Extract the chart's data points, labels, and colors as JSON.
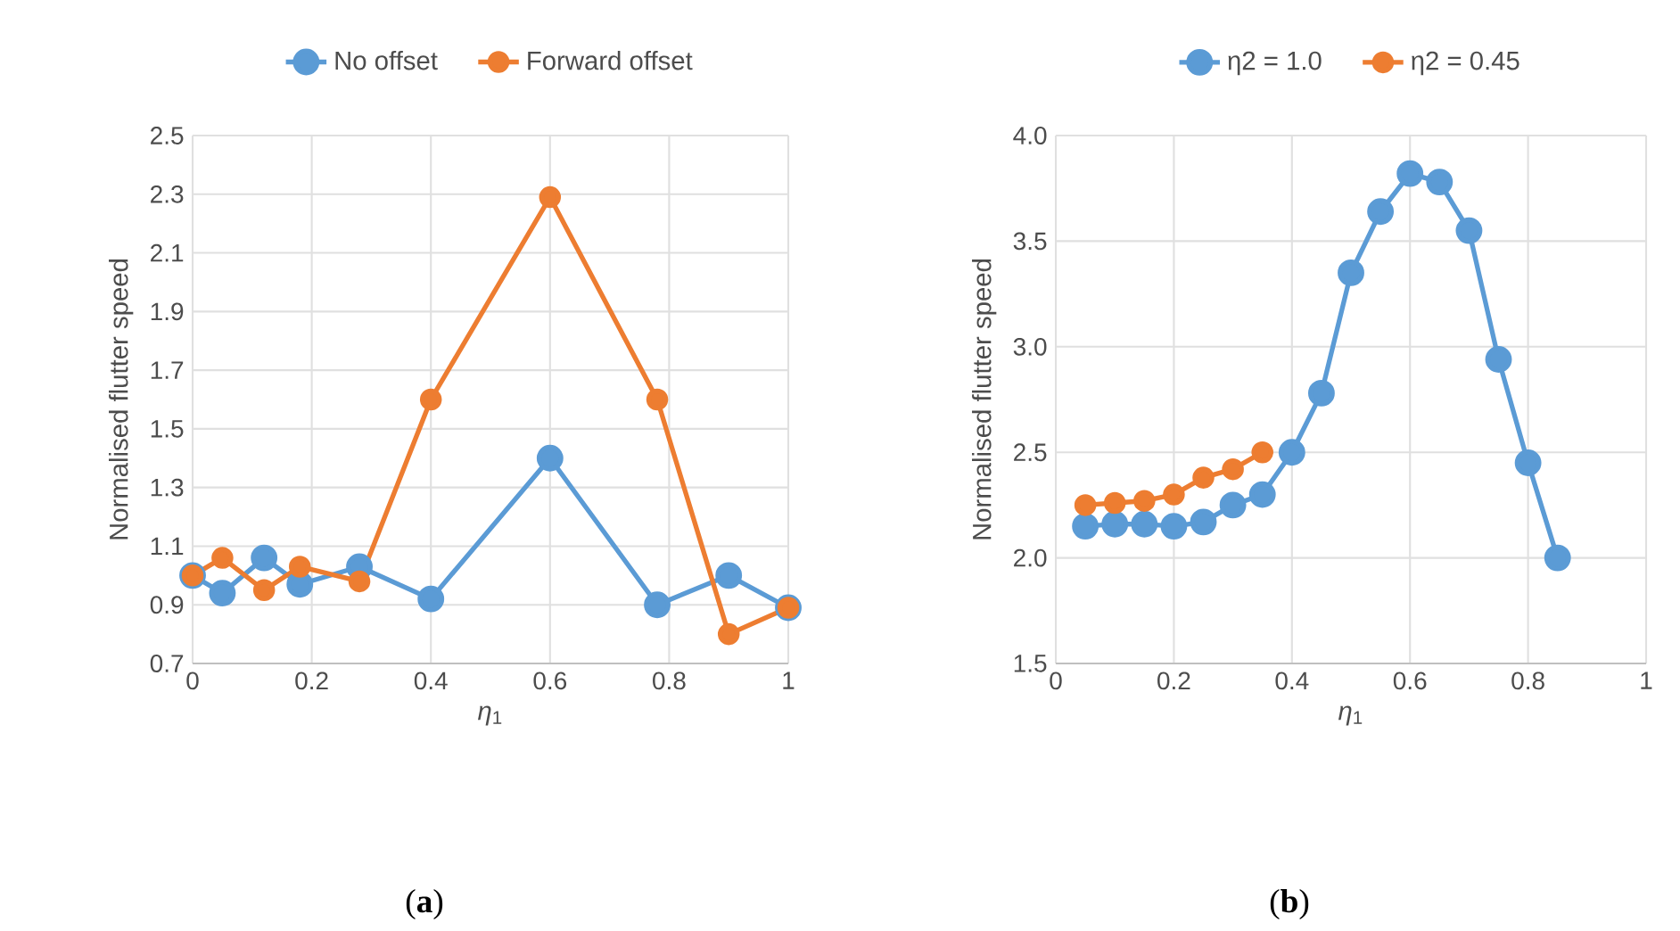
{
  "chart_data": [
    {
      "type": "line",
      "xlabel": "*η*$_{1}$",
      "ylabel": "Normalised flutter speed",
      "xlim": [
        0,
        1
      ],
      "ylim": [
        0.7,
        2.5
      ],
      "xticks": [
        0,
        0.2,
        0.4,
        0.6,
        0.8,
        1
      ],
      "yticks": [
        0.7,
        0.9,
        1.1,
        1.3,
        1.5,
        1.7,
        1.9,
        2.1,
        2.3,
        2.5
      ],
      "grid": true,
      "legend": "top",
      "marker": "circle",
      "line_style": "solid",
      "annotations": [
        "(**a**)"
      ],
      "series": [
        {
          "name": "No offset",
          "color": "#5b9bd5",
          "x": [
            0,
            0.05,
            0.12,
            0.18,
            0.28,
            0.4,
            0.6,
            0.78,
            0.9,
            1
          ],
          "values": [
            1.0,
            0.94,
            1.06,
            0.97,
            1.03,
            0.92,
            1.4,
            0.9,
            1.0,
            0.89
          ]
        },
        {
          "name": "Forward offset",
          "color": "#ed7d31",
          "x": [
            0,
            0.05,
            0.12,
            0.18,
            0.28,
            0.4,
            0.6,
            0.78,
            0.9,
            1
          ],
          "values": [
            1.0,
            1.06,
            0.95,
            1.03,
            0.98,
            1.6,
            2.29,
            1.6,
            0.8,
            0.89
          ]
        }
      ]
    },
    {
      "type": "line",
      "xlabel": "*η*$_{1}$",
      "ylabel": "Normalised flutter speed",
      "xlim": [
        0,
        1
      ],
      "ylim": [
        1.5,
        4.0
      ],
      "xticks": [
        0,
        0.2,
        0.4,
        0.6,
        0.8,
        1
      ],
      "yticks": [
        1.5,
        {
          "value": 2,
          "label": "2.0"
        },
        2.5,
        {
          "value": 3,
          "label": "3.0"
        },
        3.5,
        {
          "value": 4,
          "label": "4.0"
        }
      ],
      "grid": true,
      "legend": "top",
      "marker": "circle",
      "line_style": "solid",
      "annotations": [
        "(**b**)"
      ],
      "series": [
        {
          "name": "η2 = 1.0",
          "color": "#5b9bd5",
          "x": [
            0.05,
            0.1,
            0.15,
            0.2,
            0.25,
            0.3,
            0.35,
            0.4,
            0.45,
            0.5,
            0.55,
            0.6,
            0.65,
            0.7,
            0.75,
            0.8,
            0.85
          ],
          "values": [
            2.15,
            2.16,
            2.16,
            2.15,
            2.17,
            2.25,
            2.3,
            2.5,
            2.78,
            3.35,
            3.64,
            3.82,
            3.78,
            3.55,
            2.94,
            2.45,
            2.0
          ]
        },
        {
          "name": "η2 = 0.45",
          "color": "#ed7d31",
          "x": [
            0.05,
            0.1,
            0.15,
            0.2,
            0.25,
            0.3,
            0.35
          ],
          "values": [
            2.25,
            2.26,
            2.27,
            2.3,
            2.38,
            2.42,
            2.5
          ]
        }
      ]
    }
  ]
}
